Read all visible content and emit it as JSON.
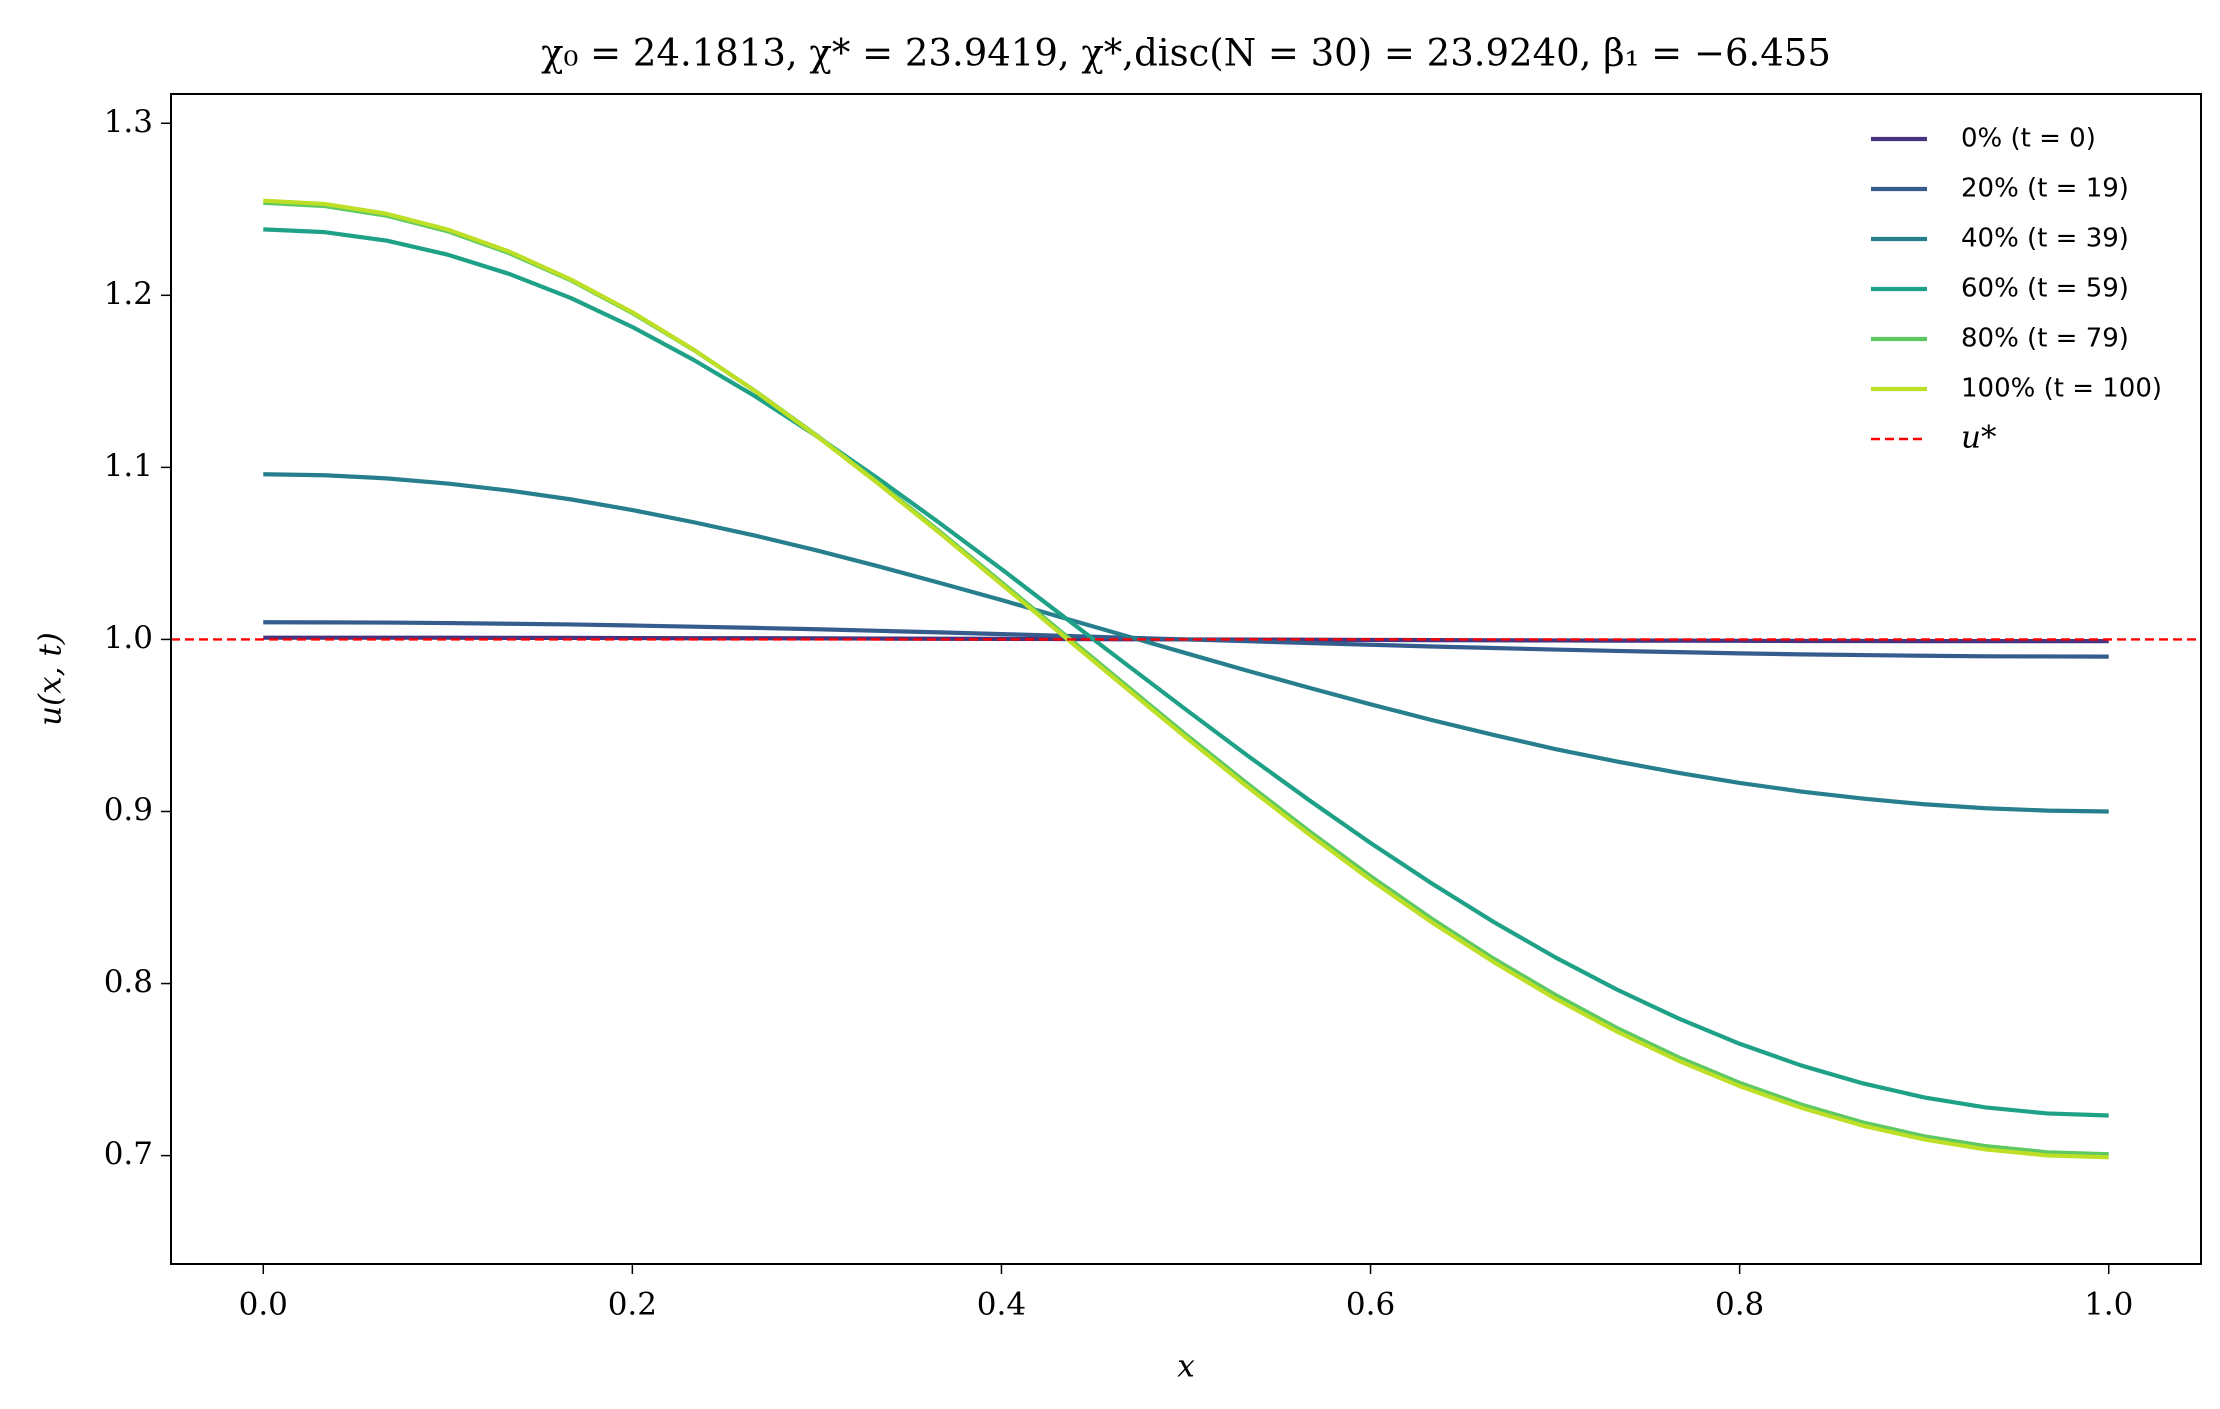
{
  "chart_data": {
    "type": "line",
    "title": "χ₀ = 24.1813,  χ* = 23.9419,  χ*,disc(N = 30) = 23.9240,  β₁ = −6.455",
    "x_label": "x",
    "y_label": "u(x, t)",
    "xlim": [
      -0.05,
      1.05
    ],
    "ylim": [
      0.637,
      1.317
    ],
    "xticks": [
      {
        "value": 0,
        "label": "0.0"
      },
      0.2,
      0.4,
      0.6,
      0.8,
      {
        "value": 1,
        "label": "1.0"
      }
    ],
    "yticks": [
      0.7,
      0.8,
      0.9,
      {
        "value": 1,
        "label": "1.0"
      },
      1.1,
      1.2,
      1.3
    ],
    "grid": false,
    "legend": "upper right",
    "x": [
      0,
      0.0333,
      0.0667,
      0.1,
      0.1333,
      0.1667,
      0.2,
      0.2333,
      0.2667,
      0.3,
      0.3333,
      0.3667,
      0.4,
      0.4333,
      0.4667,
      0.5,
      0.5333,
      0.5667,
      0.6,
      0.6333,
      0.6667,
      0.7,
      0.7333,
      0.7667,
      0.8,
      0.8333,
      0.8667,
      0.9,
      0.9333,
      0.9667,
      1
    ],
    "series": [
      {
        "name": "0% (t = 0)",
        "color": "#46327e",
        "values": [
          1.001,
          1.001,
          1.001,
          1.001,
          1.0009,
          1.0009,
          1.0008,
          1.0007,
          1.0007,
          1.0006,
          1.0005,
          1.0004,
          1.0003,
          1.0002,
          1.0001,
          1.0,
          0.9999,
          0.9998,
          0.9997,
          0.9996,
          0.9995,
          0.9994,
          0.9993,
          0.9993,
          0.9992,
          0.9991,
          0.9991,
          0.999,
          0.999,
          0.999,
          0.999
        ]
      },
      {
        "name": "20% (t = 19)",
        "color": "#365c8d",
        "values": [
          1.01,
          1.0099,
          1.0098,
          1.0095,
          1.0091,
          1.0087,
          1.0081,
          1.0074,
          1.0067,
          1.0059,
          1.005,
          1.0041,
          1.0031,
          1.0021,
          1.001,
          1.0,
          0.999,
          0.9979,
          0.9969,
          0.9959,
          0.995,
          0.9941,
          0.9933,
          0.9926,
          0.9919,
          0.9913,
          0.9909,
          0.9905,
          0.9902,
          0.9901,
          0.99
        ]
      },
      {
        "name": "40% (t = 39)",
        "color": "#277f8e",
        "values": [
          1.096,
          1.0954,
          1.0936,
          1.0906,
          1.0865,
          1.0814,
          1.0752,
          1.0681,
          1.0603,
          1.0517,
          1.0425,
          1.0328,
          1.0229,
          1.0126,
          1.0023,
          0.992,
          0.9818,
          0.9719,
          0.9623,
          0.9531,
          0.9445,
          0.9363,
          0.9291,
          0.9225,
          0.9166,
          0.9116,
          0.9075,
          0.9042,
          0.9019,
          0.9005,
          0.9
        ]
      },
      {
        "name": "60% (t = 59)",
        "color": "#1fa187",
        "values": [
          1.2383,
          1.2367,
          1.2318,
          1.2236,
          1.2124,
          1.1984,
          1.1816,
          1.1624,
          1.1412,
          1.1181,
          1.0934,
          1.0675,
          1.0409,
          1.0136,
          0.9863,
          0.9592,
          0.9325,
          0.9066,
          0.8817,
          0.8581,
          0.8358,
          0.8153,
          0.7966,
          0.7798,
          0.765,
          0.7524,
          0.742,
          0.7338,
          0.728,
          0.7245,
          0.7233
        ]
      },
      {
        "name": "80% (t = 79)",
        "color": "#5ec962",
        "values": [
          1.2538,
          1.2519,
          1.2463,
          1.2372,
          1.2245,
          1.2087,
          1.1897,
          1.1682,
          1.1443,
          1.1185,
          1.0911,
          1.0626,
          1.0332,
          1.0036,
          0.974,
          0.9447,
          0.9162,
          0.8886,
          0.8624,
          0.8376,
          0.8145,
          0.7935,
          0.7743,
          0.7572,
          0.7423,
          0.7297,
          0.7193,
          0.7112,
          0.7055,
          0.7019,
          0.7008
        ]
      },
      {
        "name": "100% (t = 100)",
        "color": "#bddf26",
        "values": [
          1.255,
          1.2531,
          1.2474,
          1.2382,
          1.2254,
          1.2092,
          1.1902,
          1.1684,
          1.1442,
          1.1181,
          1.0905,
          1.0617,
          1.0321,
          1.0023,
          0.9725,
          0.943,
          0.9143,
          0.8867,
          0.8603,
          0.8355,
          0.8125,
          0.7913,
          0.7722,
          0.7552,
          0.7404,
          0.7278,
          0.7174,
          0.7094,
          0.7036,
          0.7001,
          0.699
        ]
      }
    ],
    "hline": {
      "name": "u*",
      "value": 1,
      "color": "#ff0000",
      "style": "dashed"
    }
  }
}
